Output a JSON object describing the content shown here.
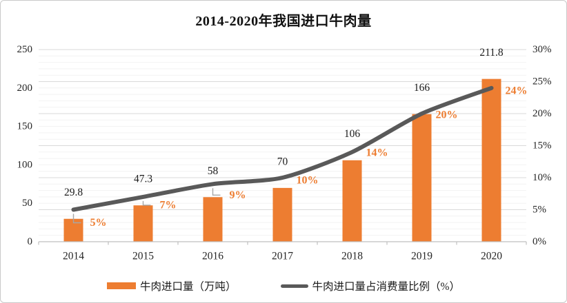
{
  "title": "2014-2020年我国进口牛肉量",
  "chart_data": {
    "type": "bar",
    "subtype": "bar-line-combo",
    "title": "2014-2020年我国进口牛肉量",
    "categories": [
      "2014",
      "2015",
      "2016",
      "2017",
      "2018",
      "2019",
      "2020"
    ],
    "series": [
      {
        "name": "牛肉进口量（万吨）",
        "type": "bar",
        "axis": "left",
        "values": [
          29.8,
          47.3,
          58,
          70,
          106,
          166,
          211.8
        ],
        "labels": [
          "29.8",
          "47.3",
          "58",
          "70",
          "106",
          "166",
          "211.8"
        ],
        "color": "#ED7D31"
      },
      {
        "name": "牛肉进口量占消费量比例（%）",
        "type": "line",
        "axis": "right",
        "values": [
          5,
          7,
          9,
          10,
          14,
          20,
          24
        ],
        "labels": [
          "5%",
          "7%",
          "9%",
          "10%",
          "14%",
          "20%",
          "24%"
        ],
        "color": "#595959"
      }
    ],
    "left_axis": {
      "min": 0,
      "max": 250,
      "ticks": [
        "0",
        "50",
        "100",
        "150",
        "200",
        "250"
      ]
    },
    "right_axis": {
      "min": 0,
      "max": 30,
      "ticks": [
        "0%",
        "5%",
        "10%",
        "15%",
        "20%",
        "25%",
        "30%"
      ],
      "minor_step": 1
    },
    "grid": "horizontal major and minor gridlines on",
    "legend_position": "bottom",
    "colors": {
      "bar": "#ED7D31",
      "line": "#595959",
      "pct_label": "#ED7D31",
      "bar_label": "#1a1a1a",
      "grid_major": "#D9D9D9",
      "grid_minor": "#F2F2F2",
      "axis": "#BFBFBF",
      "leader": "#A6A6A6"
    }
  },
  "legend": {
    "items": [
      {
        "label": "牛肉进口量（万吨）",
        "swatch": "bar"
      },
      {
        "label": "牛肉进口量占消费量比例（%）",
        "swatch": "line"
      }
    ]
  }
}
